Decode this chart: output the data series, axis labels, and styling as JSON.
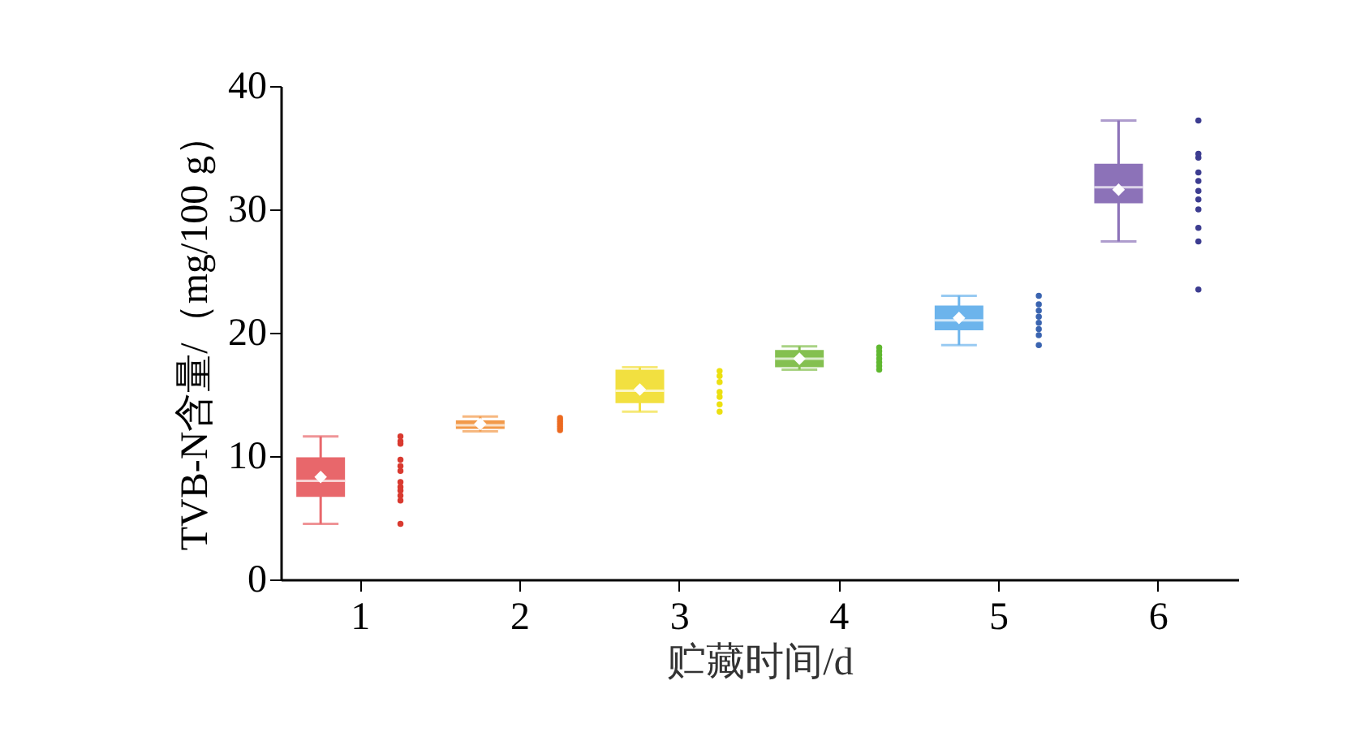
{
  "chart_data": {
    "type": "box",
    "xlabel": "贮藏时间/d",
    "ylabel": "TVB-N含量/（mg/100 g）",
    "categories": [
      "1",
      "2",
      "3",
      "4",
      "5",
      "6"
    ],
    "colors": [
      "#e8676b",
      "#f29a4a",
      "#f2e040",
      "#84c050",
      "#6cb4ec",
      "#8c72b8"
    ],
    "boxes": [
      {
        "low": 4.5,
        "q1": 6.7,
        "median": 8.0,
        "q3": 9.9,
        "high": 11.6,
        "mean": 8.3
      },
      {
        "low": 12.0,
        "q1": 12.2,
        "median": 12.5,
        "q3": 12.9,
        "high": 13.2,
        "mean": 12.6
      },
      {
        "low": 13.6,
        "q1": 14.3,
        "median": 15.3,
        "q3": 17.0,
        "high": 17.2,
        "mean": 15.4
      },
      {
        "low": 17.0,
        "q1": 17.2,
        "median": 17.9,
        "q3": 18.6,
        "high": 18.9,
        "mean": 17.9
      },
      {
        "low": 19.0,
        "q1": 20.2,
        "median": 21.0,
        "q3": 22.2,
        "high": 23.0,
        "mean": 21.2
      },
      {
        "low": 27.4,
        "q1": 30.5,
        "median": 31.8,
        "q3": 33.7,
        "high": 37.2,
        "mean": 31.6
      }
    ],
    "series": [
      {
        "type": "scatter",
        "color": "#d93a30",
        "x": [
          "1",
          "1",
          "1",
          "1",
          "1",
          "1",
          "1",
          "1",
          "1",
          "1",
          "1",
          "1"
        ],
        "values": [
          11.6,
          11.2,
          11.0,
          9.7,
          9.2,
          8.8,
          7.9,
          7.5,
          7.2,
          6.8,
          6.4,
          4.5
        ]
      },
      {
        "type": "scatter",
        "color": "#ec6a20",
        "x": [
          "2",
          "2",
          "2",
          "2",
          "2",
          "2"
        ],
        "values": [
          12.1,
          12.3,
          12.5,
          12.7,
          12.9,
          13.1
        ]
      },
      {
        "type": "scatter",
        "color": "#ece010",
        "x": [
          "3",
          "3",
          "3",
          "3",
          "3",
          "3",
          "3"
        ],
        "values": [
          13.6,
          14.2,
          14.8,
          15.2,
          16.0,
          16.5,
          16.9
        ]
      },
      {
        "type": "scatter",
        "color": "#60b830",
        "x": [
          "4",
          "4",
          "4",
          "4",
          "4",
          "4",
          "4"
        ],
        "values": [
          17.0,
          17.3,
          17.6,
          17.9,
          18.2,
          18.5,
          18.8
        ]
      },
      {
        "type": "scatter",
        "color": "#3a64b0",
        "x": [
          "5",
          "5",
          "5",
          "5",
          "5",
          "5",
          "5",
          "5"
        ],
        "values": [
          19.0,
          19.8,
          20.3,
          20.8,
          21.3,
          21.8,
          22.3,
          23.0
        ]
      },
      {
        "type": "scatter",
        "color": "#3c3c90",
        "x": [
          "6",
          "6",
          "6",
          "6",
          "6",
          "6",
          "6",
          "6",
          "6",
          "6",
          "6"
        ],
        "values": [
          23.5,
          27.4,
          28.5,
          30.0,
          30.8,
          31.5,
          32.3,
          33.0,
          34.2,
          34.5,
          37.2
        ]
      }
    ],
    "ylim": [
      0,
      40
    ],
    "yticks": [
      0,
      10,
      20,
      30,
      40
    ],
    "grid": false,
    "marker": "circle"
  }
}
